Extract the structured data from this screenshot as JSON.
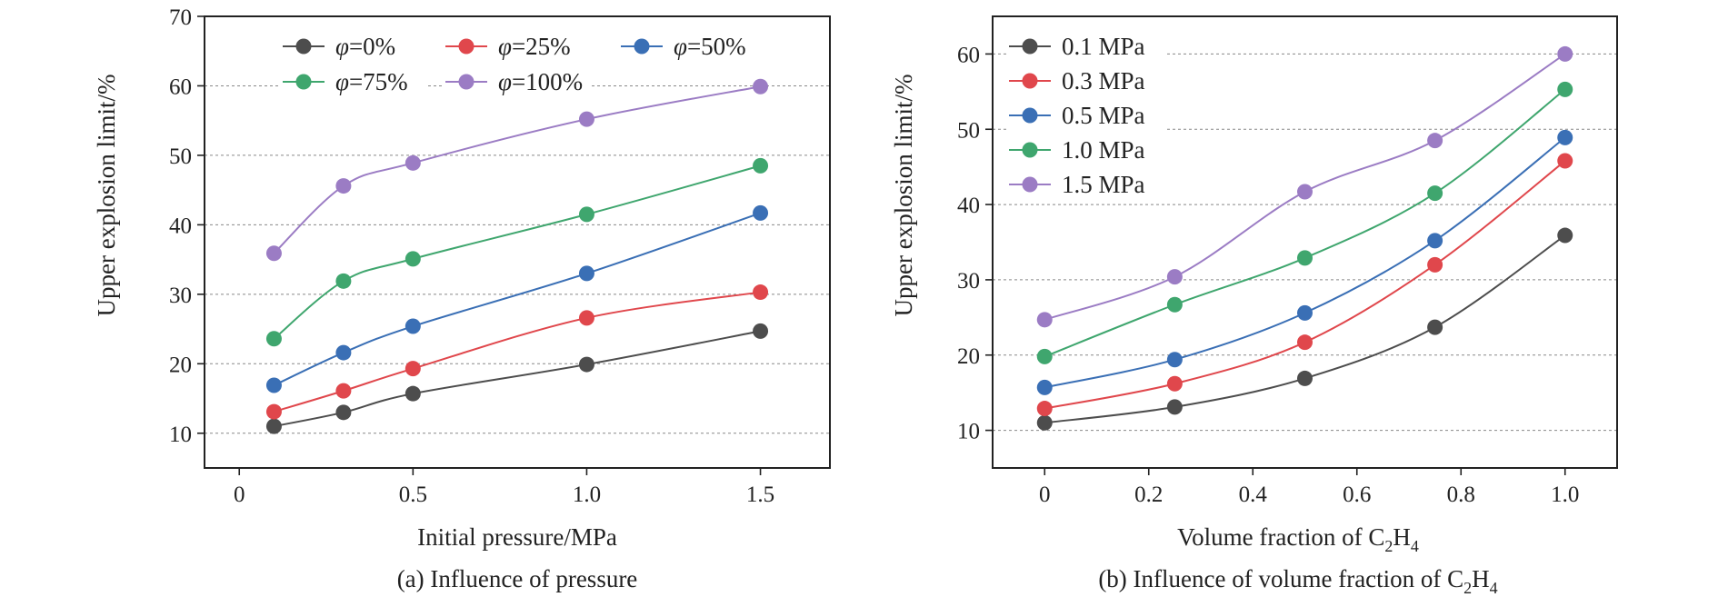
{
  "chart_data": [
    {
      "type": "scatter",
      "caption": "(a) Influence of pressure",
      "xlabel": "Initial pressure/MPa",
      "ylabel": "Upper explosion limit/%",
      "xlim": [
        -0.1,
        1.7
      ],
      "ylim": [
        5,
        70
      ],
      "x_ticks": [
        0,
        0.5,
        1.0,
        1.5
      ],
      "x_tick_labels": [
        "0",
        "0.5",
        "1.0",
        "1.5"
      ],
      "y_ticks": [
        10,
        20,
        30,
        40,
        50,
        60,
        70
      ],
      "y_tick_labels": [
        "10",
        "20",
        "30",
        "40",
        "50",
        "60",
        "70"
      ],
      "grid": "horizontal dashed",
      "legend_position": "top",
      "fitted_curves": true,
      "series": [
        {
          "name": "φ=0%",
          "symbol": "φ",
          "suffix": "=0%",
          "color": "#4d4d4d",
          "x": [
            0.1,
            0.3,
            0.5,
            1.0,
            1.5
          ],
          "y": [
            11.0,
            13.0,
            15.7,
            19.9,
            24.7
          ]
        },
        {
          "name": "φ=25%",
          "symbol": "φ",
          "suffix": "=25%",
          "color": "#e0474c",
          "x": [
            0.1,
            0.3,
            0.5,
            1.0,
            1.5
          ],
          "y": [
            13.1,
            16.1,
            19.3,
            26.6,
            30.3
          ]
        },
        {
          "name": "φ=50%",
          "symbol": "φ",
          "suffix": "=50%",
          "color": "#3a6fb5",
          "x": [
            0.1,
            0.3,
            0.5,
            1.0,
            1.5
          ],
          "y": [
            16.9,
            21.6,
            25.4,
            33.0,
            41.7
          ]
        },
        {
          "name": "φ=75%",
          "symbol": "φ",
          "suffix": "=75%",
          "color": "#3fa66e",
          "x": [
            0.1,
            0.3,
            0.5,
            1.0,
            1.5
          ],
          "y": [
            23.6,
            31.9,
            35.1,
            41.5,
            48.5
          ]
        },
        {
          "name": "φ=100%",
          "symbol": "φ",
          "suffix": "=100%",
          "color": "#9b7cc4",
          "x": [
            0.1,
            0.3,
            0.5,
            1.0,
            1.5
          ],
          "y": [
            35.9,
            45.6,
            48.9,
            55.2,
            59.9
          ]
        }
      ]
    },
    {
      "type": "scatter",
      "caption_main": "(b) Influence of volume fraction of C",
      "caption_sub1": "2",
      "caption_mid": "H",
      "caption_sub2": "4",
      "xlabel_main": "Volume fraction of C",
      "xlabel_sub1": "2",
      "xlabel_mid": "H",
      "xlabel_sub2": "4",
      "ylabel": "Upper explosion limit/%",
      "xlim": [
        -0.1,
        1.1
      ],
      "ylim": [
        5,
        65
      ],
      "x_ticks": [
        0,
        0.2,
        0.4,
        0.6,
        0.8,
        1.0
      ],
      "x_tick_labels": [
        "0",
        "0.2",
        "0.4",
        "0.6",
        "0.8",
        "1.0"
      ],
      "y_ticks": [
        10,
        20,
        30,
        40,
        50,
        60
      ],
      "y_tick_labels": [
        "10",
        "20",
        "30",
        "40",
        "50",
        "60"
      ],
      "grid": "horizontal dashed",
      "legend_position": "top-left",
      "fitted_curves": true,
      "series": [
        {
          "name": "0.1 MPa",
          "color": "#4d4d4d",
          "x": [
            0,
            0.25,
            0.5,
            0.75,
            1.0
          ],
          "y": [
            11.0,
            13.1,
            16.9,
            23.7,
            35.9
          ]
        },
        {
          "name": "0.3 MPa",
          "color": "#e0474c",
          "x": [
            0,
            0.25,
            0.5,
            0.75,
            1.0
          ],
          "y": [
            12.9,
            16.2,
            21.7,
            32.0,
            45.8
          ]
        },
        {
          "name": "0.5 MPa",
          "color": "#3a6fb5",
          "x": [
            0,
            0.25,
            0.5,
            0.75,
            1.0
          ],
          "y": [
            15.7,
            19.4,
            25.6,
            35.2,
            48.9
          ]
        },
        {
          "name": "1.0 MPa",
          "color": "#3fa66e",
          "x": [
            0,
            0.25,
            0.5,
            0.75,
            1.0
          ],
          "y": [
            19.8,
            26.7,
            32.9,
            41.5,
            55.3
          ]
        },
        {
          "name": "1.5 MPa",
          "color": "#9b7cc4",
          "x": [
            0,
            0.25,
            0.5,
            0.75,
            1.0
          ],
          "y": [
            24.7,
            30.4,
            41.7,
            48.5,
            60.0
          ]
        }
      ]
    }
  ]
}
